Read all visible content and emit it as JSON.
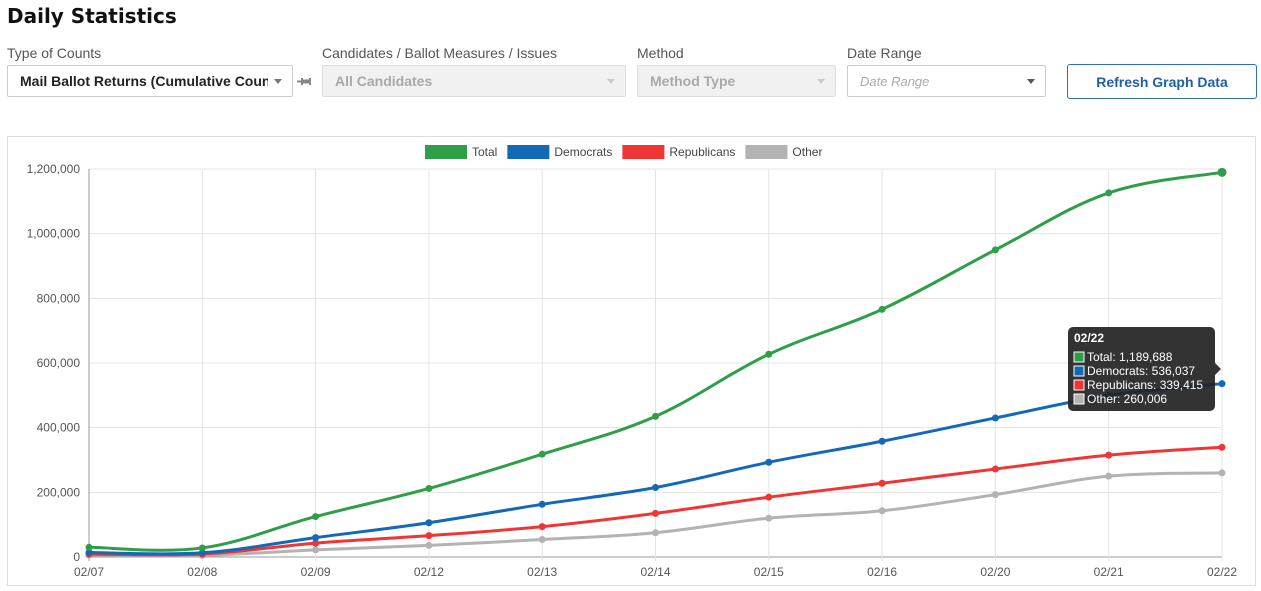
{
  "page": {
    "title": "Daily Statistics"
  },
  "filters": {
    "type_of_counts": {
      "label": "Type of Counts",
      "value": "Mail Ballot Returns (Cumulative Counts)"
    },
    "candidates": {
      "label": "Candidates / Ballot Measures / Issues",
      "value": "All Candidates"
    },
    "method": {
      "label": "Method",
      "value": "Method Type"
    },
    "date_range": {
      "label": "Date Range",
      "placeholder": "Date Range"
    }
  },
  "refresh_button": {
    "label": "Refresh Graph Data"
  },
  "colors": {
    "Total": "#2e9e47",
    "Democrats": "#1468b8",
    "Republicans": "#f03535",
    "Other": "#b3b3b3"
  },
  "chart_data": {
    "type": "line",
    "title": "",
    "xlabel": "",
    "ylabel": "",
    "categories": [
      "02/07",
      "02/08",
      "02/09",
      "02/12",
      "02/13",
      "02/14",
      "02/15",
      "02/16",
      "02/20",
      "02/21",
      "02/22"
    ],
    "ylim": [
      0,
      1200000
    ],
    "yticks": [
      0,
      200000,
      400000,
      600000,
      800000,
      1000000,
      1200000
    ],
    "ytick_labels": [
      "0",
      "200,000",
      "400,000",
      "600,000",
      "800,000",
      "1,000,000",
      "1,200,000"
    ],
    "grid": true,
    "legend_position": "top",
    "series": [
      {
        "name": "Total",
        "values": [
          30000,
          28000,
          125000,
          212000,
          318000,
          435000,
          627000,
          766000,
          950000,
          1126000,
          1189688
        ]
      },
      {
        "name": "Democrats",
        "values": [
          14000,
          13000,
          60000,
          106000,
          163000,
          215000,
          293000,
          358000,
          430000,
          500000,
          536037
        ]
      },
      {
        "name": "Republicans",
        "values": [
          9000,
          9000,
          43000,
          66000,
          94000,
          135000,
          185000,
          228000,
          272000,
          315000,
          339415
        ]
      },
      {
        "name": "Other",
        "values": [
          6000,
          5000,
          22000,
          36000,
          54000,
          75000,
          120000,
          143000,
          193000,
          250000,
          260006
        ]
      }
    ],
    "tooltip": {
      "title": "02/22",
      "rows": [
        {
          "series": "Total",
          "text": "Total: 1,189,688"
        },
        {
          "series": "Democrats",
          "text": "Democrats: 536,037"
        },
        {
          "series": "Republicans",
          "text": "Republicans: 339,415"
        },
        {
          "series": "Other",
          "text": "Other: 260,006"
        }
      ]
    }
  }
}
